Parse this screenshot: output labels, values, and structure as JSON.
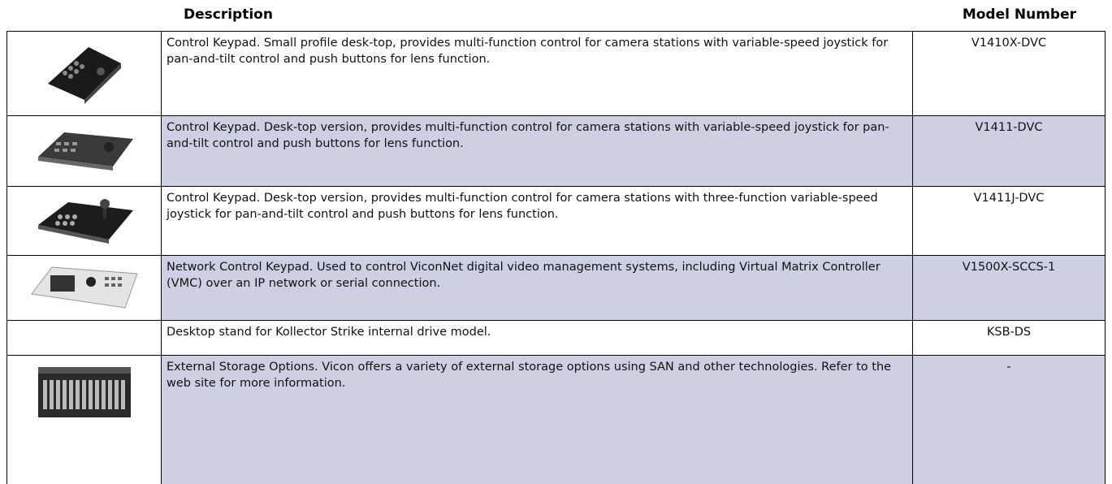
{
  "table": {
    "header": {
      "description": "Description",
      "model": "Model Number"
    },
    "rows": [
      {
        "description": "Control Keypad. Small profile desk-top, provides multi-function control for camera stations with variable-speed joystick for pan-and-tilt control and push buttons for lens function.",
        "model": "V1410X-DVC"
      },
      {
        "description": "Control Keypad. Desk-top version, provides multi-function control for camera stations with variable-speed joystick for pan-and-tilt control and push buttons for lens function.",
        "model": "V1411-DVC"
      },
      {
        "description": "Control Keypad. Desk-top version, provides multi-function control for camera stations with three-function variable-speed joystick for pan-and-tilt control and push buttons for lens function.",
        "model": "V1411J-DVC"
      },
      {
        "description": "Network Control Keypad. Used to control ViconNet digital video management systems, including Virtual Matrix Controller (VMC) over an IP network or serial connection.",
        "model": "V1500X-SCCS-1"
      },
      {
        "description": "Desktop stand for Kollector Strike internal drive model.",
        "model": "KSB-DS"
      },
      {
        "description": "External Storage Options. Vicon offers a variety of external storage options using SAN and other technologies. Refer to the web site for more information.",
        "model": "-"
      }
    ]
  }
}
